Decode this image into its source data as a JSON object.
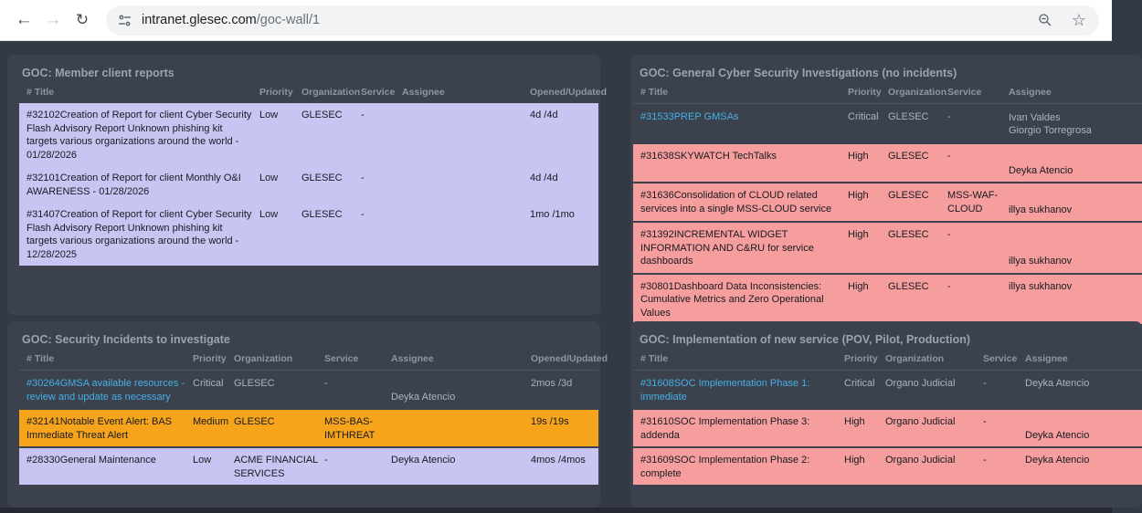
{
  "browser": {
    "back": "←",
    "forward": "→",
    "reload": "↻",
    "url_host": "intranet.glesec.com",
    "url_path": "/goc-wall/1",
    "bookmark_star": "☆"
  },
  "colors": {
    "link": "#46afe7",
    "pink": "#f69e9e",
    "orange": "#f6a41c",
    "lavender": "#c9c5f3",
    "page_background": "#343a45",
    "panel_background": "#3b424d"
  },
  "panels": [
    {
      "title": "GOC: Member client reports",
      "columns": [
        "# Title",
        "Priority",
        "Organization",
        "Service",
        "Assignee",
        "Opened/Updated"
      ],
      "has_opened": true,
      "rows": [
        {
          "title": "#32102Creation of Report for client Cyber Security Flash Advisory Report Unknown phishing kit targets various organizations around the world - 01/28/2026",
          "priority": "Low",
          "organization": "GLESEC",
          "service": "-",
          "assignee": "",
          "opened": "4d /4d",
          "bg": "lavender",
          "link": false,
          "assignee_align": "top"
        },
        {
          "title": "#32101Creation of Report for client Monthly O&I AWARENESS - 01/28/2026",
          "priority": "Low",
          "organization": "GLESEC",
          "service": "-",
          "assignee": "",
          "opened": "4d /4d",
          "bg": "lavender",
          "link": false,
          "assignee_align": "top"
        },
        {
          "title": "#31407Creation of Report for client Cyber Security Flash Advisory Report Unknown phishing kit targets various organizations around the world - 12/28/2025",
          "priority": "Low",
          "organization": "GLESEC",
          "service": "-",
          "assignee": "",
          "opened": "1mo /1mo",
          "bg": "lavender",
          "link": false,
          "assignee_align": "top"
        }
      ]
    },
    {
      "title": "GOC: General Cyber Security Investigations (no incidents)",
      "columns": [
        "# Title",
        "Priority",
        "Organization",
        "Service",
        "Assignee"
      ],
      "has_opened": false,
      "rows": [
        {
          "title": "#31533PREP GMSAs",
          "priority": "Critical",
          "organization": "GLESEC",
          "service": "-",
          "assignee": "Ivan Valdes\nGiorgio Torregrosa",
          "bg": "dark",
          "link": true,
          "assignee_align": "middle"
        },
        {
          "title": "#31638SKYWATCH TechTalks",
          "priority": "High",
          "organization": "GLESEC",
          "service": "-",
          "assignee": "Deyka Atencio",
          "bg": "pink",
          "link": false,
          "assignee_align": "bottom"
        },
        {
          "title": "#31636Consolidation of CLOUD related services into a single MSS-CLOUD service",
          "priority": "High",
          "organization": "GLESEC",
          "service": "MSS-WAF-CLOUD",
          "assignee": "illya sukhanov",
          "bg": "pink",
          "link": false,
          "assignee_align": "bottom"
        },
        {
          "title": "#31392INCREMENTAL WIDGET INFORMATION AND C&RU for service dashboards",
          "priority": "High",
          "organization": "GLESEC",
          "service": "-",
          "assignee": "illya sukhanov",
          "bg": "pink",
          "link": false,
          "assignee_align": "bottom"
        },
        {
          "title": "#30801Dashboard Data Inconsistencies: Cumulative Metrics and Zero Operational Values",
          "priority": "High",
          "organization": "GLESEC",
          "service": "-",
          "assignee": "illya sukhanov",
          "bg": "pink",
          "link": false,
          "assignee_align": "top"
        }
      ]
    },
    {
      "title": "GOC: Security Incidents to investigate",
      "columns": [
        "# Title",
        "Priority",
        "Organization",
        "Service",
        "Assignee",
        "Opened/Updated"
      ],
      "has_opened": true,
      "rows": [
        {
          "title": "#30264GMSA available resources - review and update as necessary",
          "priority": "Critical",
          "organization": "GLESEC",
          "service": "-",
          "assignee": "Deyka Atencio",
          "opened": "2mos /3d",
          "bg": "dark",
          "link": true,
          "assignee_align": "bottom"
        },
        {
          "title": "#32141Notable Event Alert: BAS Immediate Threat Alert",
          "priority": "Medium",
          "organization": "GLESEC",
          "service": "MSS-BAS-IMTHREAT",
          "assignee": "",
          "opened": "19s /19s",
          "bg": "orange",
          "link": false,
          "assignee_align": "top"
        },
        {
          "title": "#28330General Maintenance",
          "priority": "Low",
          "organization": "ACME FINANCIAL SERVICES",
          "service": "-",
          "assignee": "Deyka Atencio",
          "opened": "4mos /4mos",
          "bg": "lavender",
          "link": false,
          "assignee_align": "top"
        }
      ]
    },
    {
      "title": "GOC: Implementation of new service (POV, Pilot, Production)",
      "columns": [
        "# Title",
        "Priority",
        "Organization",
        "Service",
        "Assignee"
      ],
      "has_opened": false,
      "rows": [
        {
          "title": "#31608SOC Implementation Phase 1: immediate",
          "priority": "Critical",
          "organization": "Organo Judicial",
          "service": "-",
          "assignee": "Deyka Atencio",
          "bg": "dark",
          "link": true,
          "assignee_align": "top"
        },
        {
          "title": "#31610SOC Implementation Phase 3: addenda",
          "priority": "High",
          "organization": "Organo Judicial",
          "service": "-",
          "assignee": "Deyka Atencio",
          "bg": "pink",
          "link": false,
          "assignee_align": "bottom"
        },
        {
          "title": "#31609SOC Implementation Phase 2: complete",
          "priority": "High",
          "organization": "Organo Judicial",
          "service": "-",
          "assignee": "Deyka Atencio",
          "bg": "pink",
          "link": false,
          "assignee_align": "top"
        }
      ]
    }
  ]
}
